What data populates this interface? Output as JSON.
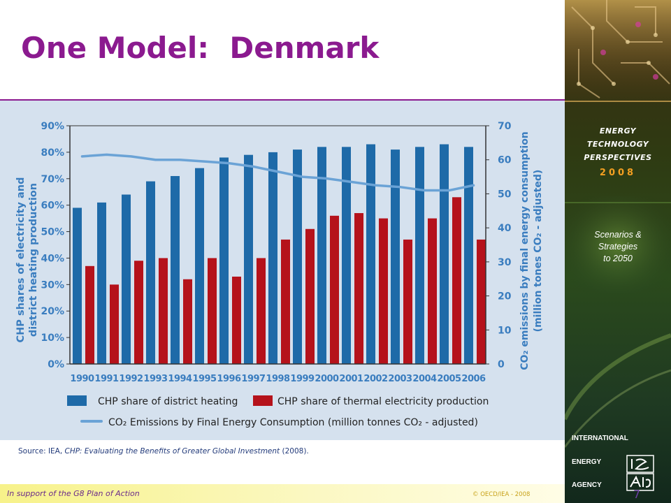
{
  "slide": {
    "title": "One Model:  Denmark",
    "source_prefix": "Source:  IEA, ",
    "source_title": "CHP: Evaluating the Benefits of Greater Global Investment",
    "source_suffix": "  (2008).",
    "footer_left": "In support of the G8 Plan of Action",
    "footer_right": "© OECD/IEA - 2008",
    "page_number": "7"
  },
  "sidebar": {
    "line1": "ENERGY",
    "line2": "TECHNOLOGY",
    "line3": "PERSPECTIVES",
    "year": "2008",
    "scen1": "Scenarios &",
    "scen2": "Strategies",
    "scen3": "to 2050",
    "iea1": "INTERNATIONAL",
    "iea2": "ENERGY",
    "iea3": "AGENCY",
    "logo_text": "iea"
  },
  "colors": {
    "title": "#8b1a8f",
    "district_heating": "#1e6aa8",
    "thermal_electricity": "#b5121b",
    "emissions_line": "#6ba3d6",
    "axis_text": "#3a7dbf"
  },
  "chart_data": {
    "type": "bar",
    "categories": [
      "1990",
      "1991",
      "1992",
      "1993",
      "1994",
      "1995",
      "1996",
      "1997",
      "1998",
      "1999",
      "2000",
      "2001",
      "2002",
      "2003",
      "2004",
      "2005",
      "2006"
    ],
    "series": [
      {
        "name": "CHP share of district heating",
        "axis": "left",
        "values": [
          59,
          61,
          64,
          69,
          71,
          74,
          78,
          79,
          80,
          81,
          82,
          82,
          83,
          81,
          82,
          83,
          82
        ]
      },
      {
        "name": "CHP share of thermal electricity production",
        "axis": "left",
        "values": [
          37,
          30,
          39,
          40,
          32,
          40,
          33,
          40,
          47,
          51,
          56,
          57,
          55,
          47,
          55,
          63,
          47
        ]
      },
      {
        "name": "CO₂ Emissions by Final Energy Consumption (million tonnes CO₂ - adjusted)",
        "axis": "right",
        "type": "line",
        "values": [
          61,
          61.5,
          61,
          60,
          60,
          59.5,
          59,
          58,
          56.5,
          55,
          54.5,
          53.5,
          52.5,
          52,
          51,
          51,
          52.5
        ]
      }
    ],
    "left_ticks": [
      "90%",
      "80%",
      "70%",
      "60%",
      "50%",
      "40%",
      "30%",
      "20%",
      "10%",
      "0%"
    ],
    "right_ticks": [
      "70",
      "60",
      "50",
      "40",
      "30",
      "20",
      "10",
      "0"
    ],
    "ylabel_left_line1": "CHP shares of electricity and",
    "ylabel_left_line2": "district heating production",
    "ylabel_right_line1": "CO₂ emissions by final energy consumption",
    "ylabel_right_line2": "(million tones CO₂ - adjusted)",
    "ylim_left": [
      0,
      90
    ],
    "ylim_right": [
      0,
      70
    ],
    "grid": false,
    "legend_position": "bottom"
  }
}
